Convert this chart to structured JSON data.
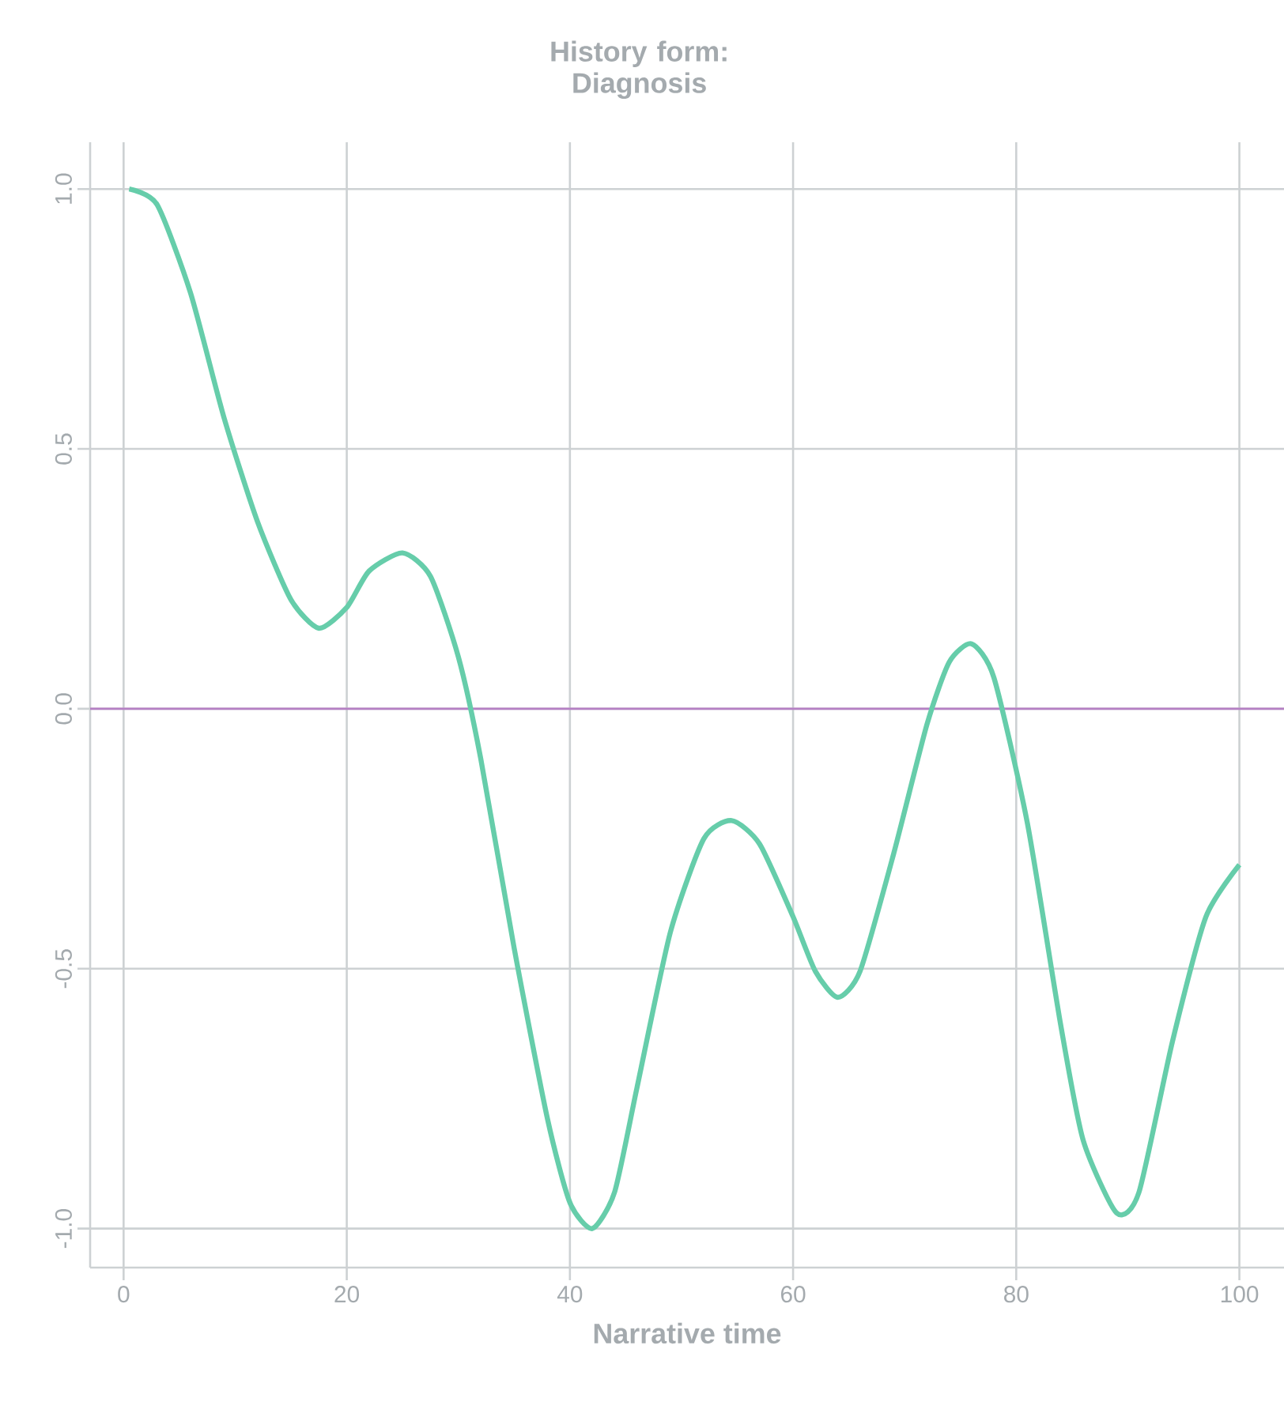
{
  "chart_data": {
    "type": "line",
    "title": "History form: Diagnosis",
    "xlabel": "Narrative time",
    "x": [
      0.5,
      3,
      6,
      9,
      12,
      15,
      17.5,
      20,
      22,
      25,
      27.5,
      30,
      32,
      35,
      38,
      40,
      42,
      44,
      46,
      49,
      52,
      54.5,
      57,
      60,
      62,
      64,
      66,
      69,
      72,
      74,
      76,
      78,
      81,
      84,
      86,
      89,
      91,
      94,
      97,
      100
    ],
    "series": [
      {
        "color": "#66cdaa",
        "values": [
          1.0,
          0.97,
          0.8,
          0.56,
          0.36,
          0.21,
          0.155,
          0.195,
          0.265,
          0.3,
          0.255,
          0.1,
          -0.095,
          -0.46,
          -0.79,
          -0.95,
          -1.0,
          -0.93,
          -0.73,
          -0.43,
          -0.25,
          -0.215,
          -0.26,
          -0.4,
          -0.505,
          -0.555,
          -0.505,
          -0.28,
          -0.03,
          0.09,
          0.125,
          0.06,
          -0.22,
          -0.61,
          -0.83,
          -0.97,
          -0.93,
          -0.64,
          -0.4,
          -0.3
        ]
      }
    ],
    "xlim": [
      -3,
      104
    ],
    "ylim": [
      -1.075,
      1.09
    ],
    "xticks": [
      0,
      20,
      40,
      60,
      80,
      100
    ],
    "yticks": [
      {
        "value": -1,
        "label": "-1.0"
      },
      {
        "value": -0.5,
        "label": "-0.5"
      },
      {
        "value": 0,
        "label": "0.0"
      },
      {
        "value": 0.5,
        "label": "0.5"
      },
      {
        "value": 1,
        "label": "1.0"
      }
    ],
    "grid": true,
    "ref_lines": [
      {
        "axis": "y",
        "value": 0,
        "color": "#b57fc4"
      }
    ]
  }
}
